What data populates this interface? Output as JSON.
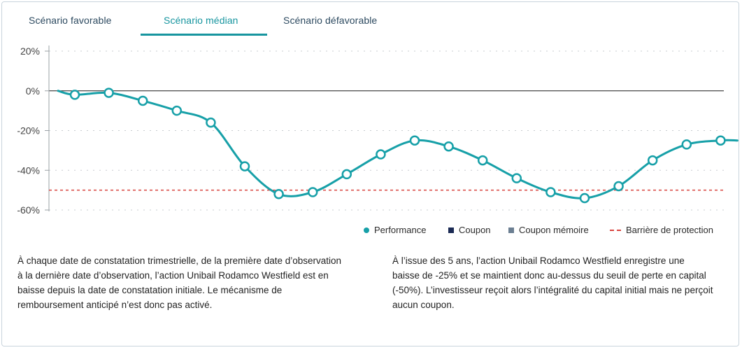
{
  "tabs": [
    {
      "label": "Scénario favorable"
    },
    {
      "label": "Scénario médian"
    },
    {
      "label": "Scénario défavorable"
    }
  ],
  "active_tab": 1,
  "colors": {
    "accent": "#17959f",
    "line": "#17a0a8",
    "barrier": "#d9443f",
    "coupon": "#1b2a54",
    "coupon_memoire": "#6c7f92",
    "tab_text": "#2d4a60"
  },
  "chart_data": {
    "type": "line",
    "ylim": [
      -60,
      20
    ],
    "y_ticks": [
      20,
      0,
      -20,
      -40,
      -60
    ],
    "y_tick_labels": [
      "20%",
      "0%",
      "-20%",
      "-40%",
      "-60%"
    ],
    "grid": true,
    "series": [
      {
        "name": "Performance",
        "values": [
          -2,
          -1,
          -5,
          -10,
          -16,
          -38,
          -52,
          -51,
          -42,
          -32,
          -25,
          -28,
          -35,
          -44,
          -51,
          -54,
          -48,
          -35,
          -27,
          -25
        ]
      }
    ],
    "barrier": {
      "name": "Barrière de protection",
      "value": -50
    },
    "legend_placement": "bottom-right"
  },
  "legend": {
    "performance": "Performance",
    "coupon": "Coupon",
    "coupon_memoire": "Coupon mémoire",
    "barriere": "Barrière de protection"
  },
  "description": {
    "left": "À chaque date de constatation trimestrielle, de la première date d’observation à la dernière date d’observation, l’action Unibail Rodamco Westfield est en baisse depuis la date de constatation initiale. Le mécanisme de remboursement anticipé n’est donc pas activé.",
    "right": "À l’issue des 5 ans, l’action Unibail Rodamco Westfield enregistre une baisse de -25% et se maintient donc au-dessus du seuil de perte en capital (-50%). L’investisseur reçoit alors l’intégralité du capital initial mais ne perçoit aucun coupon."
  }
}
